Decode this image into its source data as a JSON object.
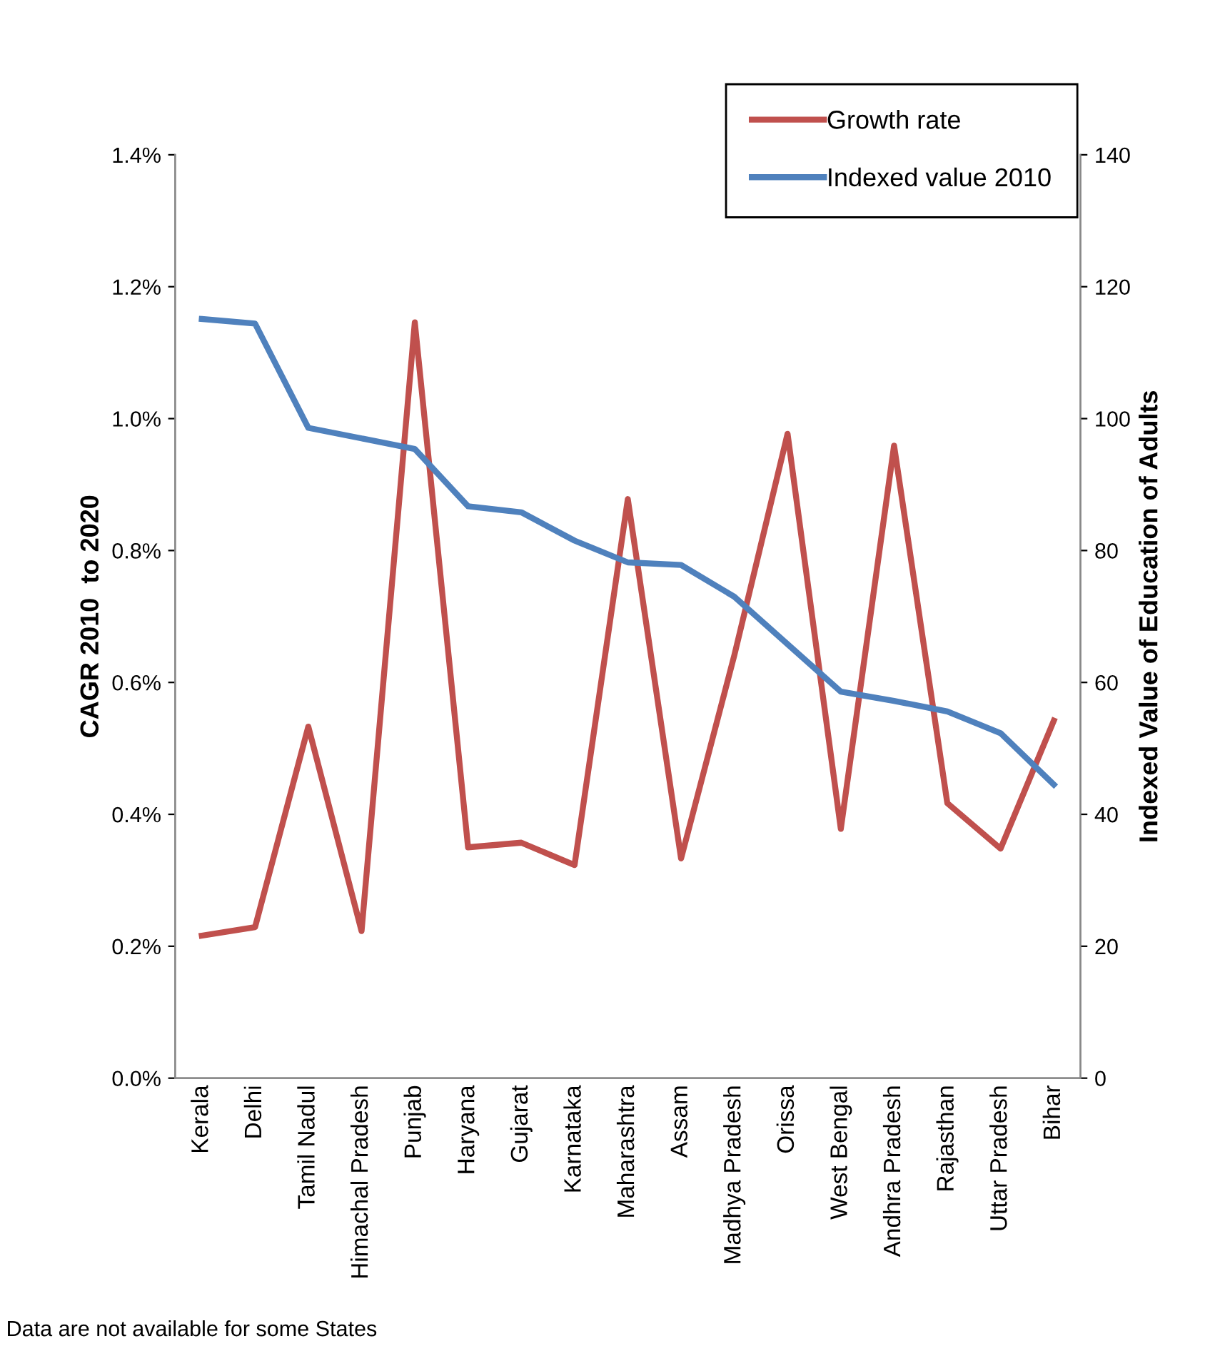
{
  "chart_data": {
    "type": "line",
    "categories": [
      "Kerala",
      "Delhi",
      "Tamil Nadul",
      "Himachal Pradesh",
      "Punjab",
      "Haryana",
      "Gujarat",
      "Karnataka",
      "Maharashtra",
      "Assam",
      "Madhya Pradesh",
      "Orissa",
      "West Bengal",
      "Andhra Pradesh",
      "Rajasthan",
      "Uttar Pradesh",
      "Bihar"
    ],
    "series": [
      {
        "name": "Growth rate",
        "color": "#c0504d",
        "values": [
          0.216,
          0.229,
          0.533,
          0.223,
          1.146,
          0.35,
          0.357,
          0.323,
          0.878,
          0.333,
          0.641,
          0.977,
          0.378,
          0.959,
          0.417,
          0.348,
          0.542
        ]
      },
      {
        "name": "Indexed value 2010",
        "color": "#4f81bd",
        "axis": "y2",
        "values": [
          115.1,
          114.4,
          98.6,
          97.0,
          95.4,
          86.7,
          85.8,
          81.5,
          78.2,
          77.8,
          73.0,
          65.8,
          58.6,
          57.2,
          55.6,
          52.3,
          44.5
        ]
      }
    ],
    "ylabel": "CAGR 2010  to 2020",
    "y2label": "Indexed Value of Education of Adults",
    "ylim": [
      0,
      1.4
    ],
    "yticks": [
      {
        "value": 0,
        "label": "0.0%"
      },
      {
        "value": 0.2,
        "label": "0.2%"
      },
      {
        "value": 0.4,
        "label": "0.4%"
      },
      {
        "value": 0.6,
        "label": "0.6%"
      },
      {
        "value": 0.8,
        "label": "0.8%"
      },
      {
        "value": 1.0,
        "label": "1.0%"
      },
      {
        "value": 1.2,
        "label": "1.2%"
      },
      {
        "value": 1.4,
        "label": "1.4%"
      }
    ],
    "y2lim": [
      0,
      140
    ],
    "y2ticks": [
      0,
      20,
      40,
      60,
      80,
      100,
      120,
      140
    ],
    "legend": "top right",
    "grid": false,
    "marker": "none",
    "line_style": "solid",
    "annotations": [
      "Data are not available for some States"
    ]
  }
}
